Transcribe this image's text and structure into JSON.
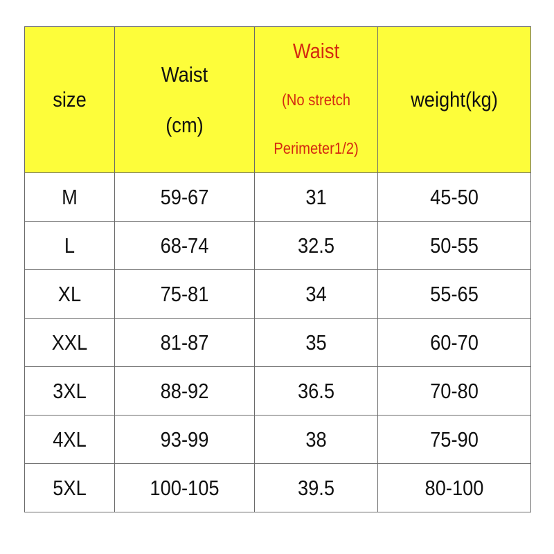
{
  "table": {
    "header": [
      {
        "lines": [
          "size"
        ]
      },
      {
        "lines": [
          "Waist",
          "(cm)"
        ]
      },
      {
        "lines": [
          "Waist",
          "(No stretch",
          "Perimeter1/2)"
        ]
      },
      {
        "lines": [
          "weight(kg)"
        ]
      }
    ],
    "rows": [
      [
        "M",
        "59-67",
        "31",
        "45-50"
      ],
      [
        "L",
        "68-74",
        "32.5",
        "50-55"
      ],
      [
        "XL",
        "75-81",
        "34",
        "55-65"
      ],
      [
        "XXL",
        "81-87",
        "35",
        "60-70"
      ],
      [
        "3XL",
        "88-92",
        "36.5",
        "70-80"
      ],
      [
        "4XL",
        "93-99",
        "38",
        "75-90"
      ],
      [
        "5XL",
        "100-105",
        "39.5",
        "80-100"
      ]
    ]
  }
}
